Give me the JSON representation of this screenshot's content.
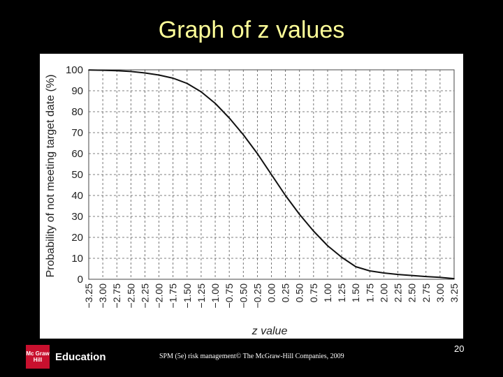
{
  "slide": {
    "title": "Graph of z values",
    "footer": "SPM (5e) risk management© The McGraw-Hill Companies, 2009",
    "page_number": "20",
    "logo_text": "Education",
    "logo_mark": "Mc Graw Hill"
  },
  "chart_data": {
    "type": "line",
    "title": "",
    "xlabel": "z value",
    "ylabel": "Probability of not meeting target date (%)",
    "ylim": [
      0,
      100
    ],
    "yticks": [
      0,
      10,
      20,
      30,
      40,
      50,
      60,
      70,
      80,
      90,
      100
    ],
    "xticks": [
      "−3.25",
      "−3.00",
      "−2.75",
      "−2.50",
      "−2.25",
      "−2.00",
      "−1.75",
      "−1.50",
      "−1.25",
      "−1.00",
      "−0.75",
      "−0.50",
      "−0.25",
      "0.00",
      "0.25",
      "0.50",
      "0.75",
      "1.00",
      "1.25",
      "1.50",
      "1.75",
      "2.00",
      "2.25",
      "2.50",
      "2.75",
      "3.00",
      "3.25"
    ],
    "grid": true,
    "series": [
      {
        "x": [
          -3.25,
          -3.0,
          -2.75,
          -2.5,
          -2.25,
          -2.0,
          -1.75,
          -1.5,
          -1.25,
          -1.0,
          -0.75,
          -0.5,
          -0.25,
          0.0,
          0.25,
          0.5,
          0.75,
          1.0,
          1.25,
          1.5,
          1.75,
          2.0,
          2.25,
          2.5,
          2.75,
          3.0,
          3.25
        ],
        "y": [
          99.9,
          99.8,
          99.6,
          99.2,
          98.5,
          97.5,
          96,
          93.5,
          89.5,
          84,
          77,
          69,
          60,
          50,
          40,
          31,
          23,
          16,
          10.5,
          6,
          4,
          3,
          2.3,
          1.8,
          1.3,
          0.9,
          0.3
        ]
      }
    ]
  }
}
